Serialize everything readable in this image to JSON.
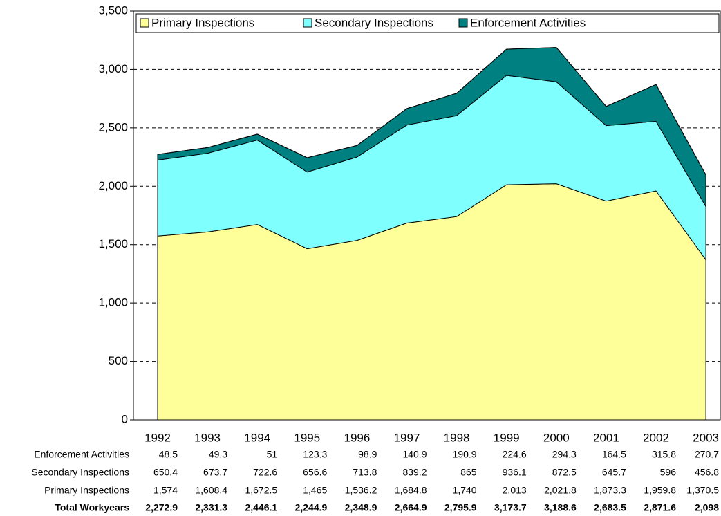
{
  "chart_data": {
    "type": "stacked_area",
    "categories": [
      "1992",
      "1993",
      "1994",
      "1995",
      "1996",
      "1997",
      "1998",
      "1999",
      "2000",
      "2001",
      "2002",
      "2003"
    ],
    "series": [
      {
        "name": "Primary Inspections",
        "color": "#ffff99",
        "values": [
          1574,
          1608.4,
          1672.5,
          1465,
          1536.2,
          1684.8,
          1740,
          2013,
          2021.8,
          1873.3,
          1959.8,
          1370.5
        ],
        "value_labels": [
          "1,574",
          "1,608.4",
          "1,672.5",
          "1,465",
          "1,536.2",
          "1,684.8",
          "1,740",
          "2,013",
          "2,021.8",
          "1,873.3",
          "1,959.8",
          "1,370.5"
        ]
      },
      {
        "name": "Secondary Inspections",
        "color": "#80ffff",
        "values": [
          650.4,
          673.7,
          722.6,
          656.6,
          713.8,
          839.2,
          865,
          936.1,
          872.5,
          645.7,
          596,
          456.8
        ],
        "value_labels": [
          "650.4",
          "673.7",
          "722.6",
          "656.6",
          "713.8",
          "839.2",
          "865",
          "936.1",
          "872.5",
          "645.7",
          "596",
          "456.8"
        ]
      },
      {
        "name": "Enforcement Activities",
        "color": "#008080",
        "values": [
          48.5,
          49.3,
          51,
          123.3,
          98.9,
          140.9,
          190.9,
          224.6,
          294.3,
          164.5,
          315.8,
          270.7
        ],
        "value_labels": [
          "48.5",
          "49.3",
          "51",
          "123.3",
          "98.9",
          "140.9",
          "190.9",
          "224.6",
          "294.3",
          "164.5",
          "315.8",
          "270.7"
        ]
      }
    ],
    "totals": {
      "name": "Total Workyears",
      "values": [
        2272.9,
        2331.3,
        2446.1,
        2244.9,
        2348.9,
        2664.9,
        2795.9,
        3173.7,
        3188.6,
        2683.5,
        2871.6,
        2098
      ],
      "value_labels": [
        "2,272.9",
        "2,331.3",
        "2,446.1",
        "2,244.9",
        "2,348.9",
        "2,664.9",
        "2,795.9",
        "3,173.7",
        "3,188.6",
        "2,683.5",
        "2,871.6",
        "2,098"
      ]
    },
    "ylim": [
      0,
      3500
    ],
    "yticks": [
      0,
      500,
      {
        "value": 1000,
        "label": "1,000"
      },
      {
        "value": 1500,
        "label": "1,500"
      },
      {
        "value": 2000,
        "label": "2,000"
      },
      {
        "value": 2500,
        "label": "2,500"
      },
      {
        "value": 3000,
        "label": "3,000"
      },
      {
        "value": 3500,
        "label": "3,500"
      }
    ],
    "grid": true,
    "legend": "top"
  }
}
